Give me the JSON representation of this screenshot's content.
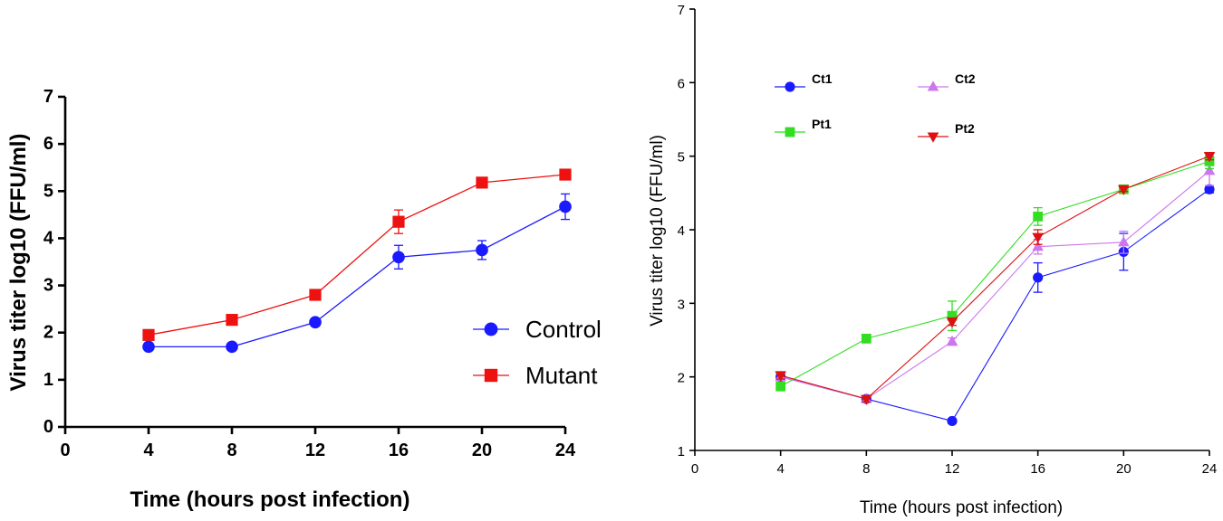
{
  "chart_data": [
    {
      "type": "line",
      "title": "",
      "xlabel": "Time (hours post infection)",
      "ylabel": "Virus titer log10 (FFU/ml)",
      "xlim": [
        0,
        24
      ],
      "ylim": [
        0,
        7
      ],
      "xticks": [
        "0",
        "4",
        "8",
        "12",
        "16",
        "20",
        "24"
      ],
      "yticks": [
        "0",
        "1",
        "2",
        "3",
        "4",
        "5",
        "6",
        "7"
      ],
      "x": [
        4,
        8,
        12,
        16,
        20,
        24
      ],
      "series": [
        {
          "name": "Control",
          "color": "#1a1aff",
          "marker": "circle",
          "values": [
            1.7,
            1.7,
            2.22,
            3.6,
            3.75,
            4.67
          ],
          "errors": [
            0.05,
            0.05,
            0.07,
            0.25,
            0.2,
            0.27
          ]
        },
        {
          "name": "Mutant",
          "color": "#ee1111",
          "marker": "square",
          "values": [
            1.95,
            2.27,
            2.8,
            4.35,
            5.18,
            5.35
          ],
          "errors": [
            0.05,
            0.05,
            0.06,
            0.25,
            0.05,
            0.05
          ]
        }
      ],
      "legend": "bottom-right"
    },
    {
      "type": "line",
      "title": "",
      "xlabel": "Time (hours post infection)",
      "ylabel": "Virus titer log10 (FFU/ml)",
      "xlim": [
        0,
        24
      ],
      "ylim": [
        1,
        7
      ],
      "xticks": [
        "0",
        "4",
        "8",
        "12",
        "16",
        "20",
        "24"
      ],
      "yticks": [
        "1",
        "2",
        "3",
        "4",
        "5",
        "6",
        "7"
      ],
      "x": [
        4,
        8,
        12,
        16,
        20,
        24
      ],
      "series": [
        {
          "name": "Ct1",
          "color": "#1a1aff",
          "marker": "circle",
          "values": [
            2.0,
            1.7,
            1.4,
            3.35,
            3.7,
            4.55
          ],
          "errors": [
            0.05,
            0.04,
            0.03,
            0.2,
            0.25,
            0.05
          ]
        },
        {
          "name": "Ct2",
          "color": "#cc77ee",
          "marker": "triangle-up",
          "values": [
            2.0,
            1.7,
            2.48,
            3.77,
            3.83,
            4.8
          ],
          "errors": [
            0.05,
            0.04,
            0.05,
            0.1,
            0.15,
            0.2
          ]
        },
        {
          "name": "Pt1",
          "color": "#33dd22",
          "marker": "square",
          "values": [
            1.87,
            2.52,
            2.83,
            4.18,
            4.55,
            4.93
          ],
          "errors": [
            0.05,
            0.03,
            0.2,
            0.12,
            0.03,
            0.1
          ]
        },
        {
          "name": "Pt2",
          "color": "#dd1111",
          "marker": "triangle-down",
          "values": [
            2.02,
            1.7,
            2.75,
            3.9,
            4.55,
            5.0
          ],
          "errors": [
            0.05,
            0.04,
            0.05,
            0.1,
            0.03,
            0.05
          ]
        }
      ],
      "legend": "top-left"
    }
  ]
}
